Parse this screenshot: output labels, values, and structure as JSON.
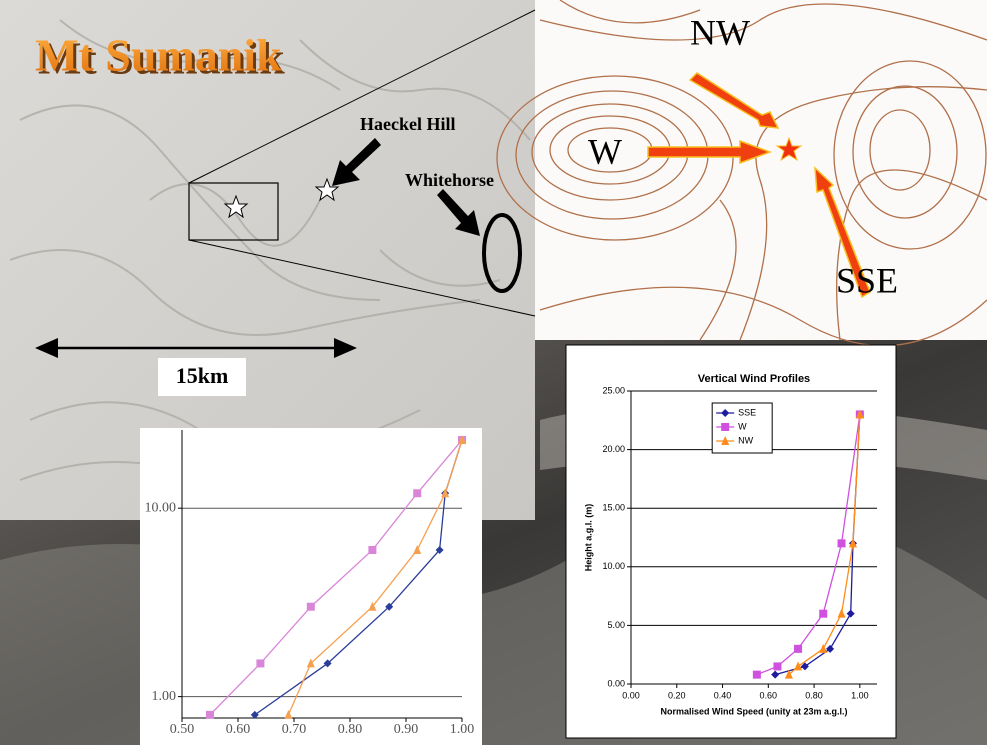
{
  "map": {
    "title": "Mt Sumanik",
    "labels": [
      "Haeckel Hill",
      "Whitehorse"
    ],
    "scale_label": "15km"
  },
  "contour_map": {
    "labels": [
      "NW",
      "W",
      "SSE"
    ]
  },
  "chart_data": [
    {
      "type": "line",
      "yscale": "log",
      "xlim": [
        0.5,
        1.0
      ],
      "ylim": [
        0.77,
        26
      ],
      "xticks": [
        {
          "value": 0.5,
          "label": "0.50"
        },
        {
          "value": 0.6,
          "label": "0.60"
        },
        {
          "value": 0.7,
          "label": "0.70"
        },
        {
          "value": 0.8,
          "label": "0.80"
        },
        {
          "value": 0.9,
          "label": "0.90"
        },
        {
          "value": 1.0,
          "label": "1.00"
        }
      ],
      "yticks": [
        {
          "value": 1,
          "label": "1.00"
        },
        {
          "value": 10,
          "label": "10.00"
        }
      ],
      "grid": true,
      "series": [
        {
          "color": "#2a3d9a",
          "marker": "diamond",
          "x": [
            0.63,
            0.76,
            0.87,
            0.96,
            0.97,
            1.0
          ],
          "values": [
            0.8,
            1.5,
            3,
            6,
            12,
            23
          ]
        },
        {
          "color": "#d986d9",
          "marker": "square",
          "x": [
            0.55,
            0.64,
            0.73,
            0.84,
            0.92,
            1.0
          ],
          "values": [
            0.8,
            1.5,
            3,
            6,
            12,
            23
          ]
        },
        {
          "color": "#f5a050",
          "marker": "triangle",
          "x": [
            0.69,
            0.73,
            0.84,
            0.92,
            0.97,
            1.0
          ],
          "values": [
            0.8,
            1.5,
            3,
            6,
            12,
            23
          ]
        }
      ]
    },
    {
      "type": "line",
      "title": "Vertical Wind Profiles",
      "xlabel": "Normalised Wind Speed (unity at 23m a.g.l.)",
      "ylabel": "Height a.g.l. (m)",
      "xlim": [
        0,
        1.075
      ],
      "ylim": [
        0,
        25
      ],
      "xticks": [
        {
          "value": 0,
          "label": "0.00"
        },
        {
          "value": 0.2,
          "label": "0.20"
        },
        {
          "value": 0.4,
          "label": "0.40"
        },
        {
          "value": 0.6,
          "label": "0.60"
        },
        {
          "value": 0.8,
          "label": "0.80"
        },
        {
          "value": 1.0,
          "label": "1.00"
        }
      ],
      "yticks": [
        {
          "value": 0,
          "label": "0.00"
        },
        {
          "value": 5,
          "label": "5.00"
        },
        {
          "value": 10,
          "label": "10.00"
        },
        {
          "value": 15,
          "label": "15.00"
        },
        {
          "value": 20,
          "label": "20.00"
        },
        {
          "value": 25,
          "label": "25.00"
        }
      ],
      "grid": true,
      "legend": "upper center",
      "series": [
        {
          "name": "SSE",
          "color": "#1c1c9c",
          "marker": "diamond",
          "x": [
            0.63,
            0.76,
            0.87,
            0.96,
            0.97,
            1.0
          ],
          "values": [
            0.8,
            1.5,
            3,
            6,
            12,
            23
          ]
        },
        {
          "name": "W",
          "color": "#d050e0",
          "marker": "square",
          "x": [
            0.55,
            0.64,
            0.73,
            0.84,
            0.92,
            1.0
          ],
          "values": [
            0.8,
            1.5,
            3,
            6,
            12,
            23
          ]
        },
        {
          "name": "NW",
          "color": "#ff8c1a",
          "marker": "triangle",
          "x": [
            0.69,
            0.73,
            0.84,
            0.92,
            0.97,
            1.0
          ],
          "values": [
            0.8,
            1.5,
            3,
            6,
            12,
            23
          ]
        }
      ]
    }
  ]
}
